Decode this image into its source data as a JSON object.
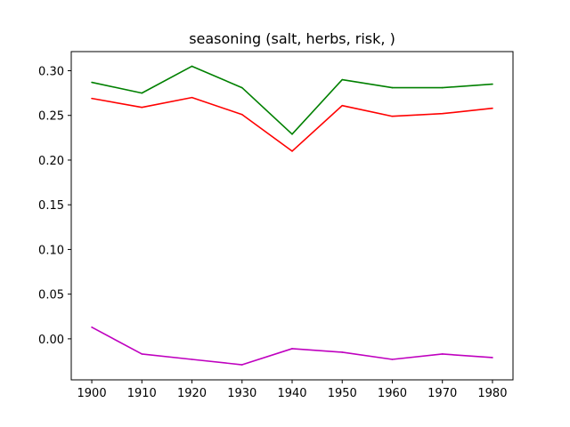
{
  "chart_data": {
    "type": "line",
    "title": "seasoning (salt, herbs, risk, )",
    "xlabel": "",
    "ylabel": "",
    "x": [
      1900,
      1910,
      1920,
      1930,
      1940,
      1950,
      1960,
      1970,
      1980
    ],
    "xticks": [
      1900,
      1910,
      1920,
      1930,
      1940,
      1950,
      1960,
      1970,
      1980
    ],
    "xtick_labels": [
      "1900",
      "1910",
      "1920",
      "1930",
      "1940",
      "1950",
      "1960",
      "1970",
      "1980"
    ],
    "xlim": [
      1895.9,
      1984.1
    ],
    "yticks": [
      0.0,
      0.05,
      0.1,
      0.15,
      0.2,
      0.25,
      0.3
    ],
    "ytick_labels": [
      "0.00",
      "0.05",
      "0.10",
      "0.15",
      "0.20",
      "0.25",
      "0.30"
    ],
    "ylim": [
      -0.0459,
      0.3214
    ],
    "grid": false,
    "legend": "none",
    "series": [
      {
        "color": "#008000",
        "values": [
          0.287,
          0.275,
          0.305,
          0.281,
          0.229,
          0.29,
          0.281,
          0.281,
          0.285
        ]
      },
      {
        "color": "#ff0000",
        "values": [
          0.269,
          0.259,
          0.27,
          0.251,
          0.21,
          0.261,
          0.249,
          0.252,
          0.258
        ]
      },
      {
        "color": "#bf00bf",
        "values": [
          0.013,
          -0.017,
          -0.023,
          -0.029,
          -0.011,
          -0.015,
          -0.023,
          -0.017,
          -0.021
        ]
      }
    ]
  }
}
